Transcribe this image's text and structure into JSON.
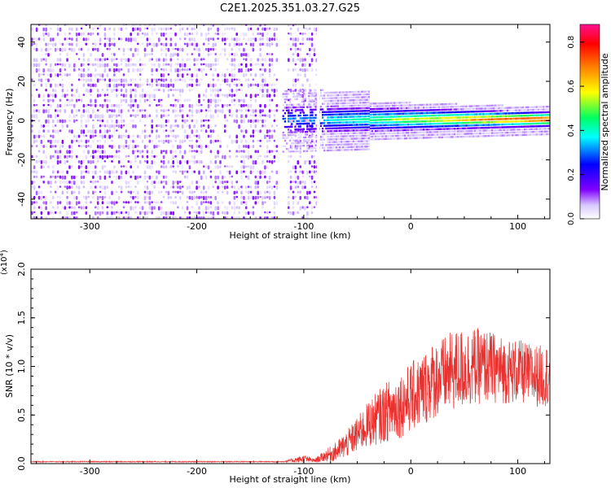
{
  "figure_title": "C2E1.2025.351.03.27.G25",
  "colors": {
    "snr_line": "#e8302e",
    "axis": "#000000",
    "background": "#ffffff"
  },
  "chart_data": [
    {
      "type": "heatmap",
      "title": "C2E1.2025.351.03.27.G25",
      "xlabel": "Height of straight line (km)",
      "ylabel": "Frequency (Hz)",
      "xlim": [
        -355,
        130
      ],
      "ylim": [
        -50,
        49
      ],
      "xticks": [
        -300,
        -200,
        -100,
        0,
        100
      ],
      "xtick_labels": [
        "-300",
        "-200",
        "-100",
        "0",
        "100"
      ],
      "yticks": [
        -40,
        -20,
        0,
        20,
        40
      ],
      "ytick_labels": [
        "-40",
        "-20",
        "0",
        "20",
        "40"
      ],
      "features": [
        {
          "name": "noise region",
          "x_range": [
            -355,
            -88
          ],
          "freq_range": [
            -50,
            49
          ],
          "typical_amplitude": 0.05
        },
        {
          "name": "gap",
          "x_range": [
            -88,
            -85
          ],
          "freq_range": [
            -50,
            49
          ],
          "typical_amplitude": 0
        },
        {
          "name": "signal track",
          "x_range": [
            -120,
            130
          ],
          "center_freq_hz": 0.5,
          "half_width_hz": [
            8,
            4
          ],
          "peak_amplitude": 0.88
        }
      ],
      "colorbar": {
        "label": "Normalized spectral amplitude",
        "range": [
          0,
          0.88
        ],
        "ticks": [
          0.0,
          0.2,
          0.4,
          0.6,
          0.8
        ],
        "tick_labels": [
          "0.0",
          "0.2",
          "0.4",
          "0.6",
          "0.8"
        ]
      }
    },
    {
      "type": "line",
      "xlabel": "Height of straight line (km)",
      "ylabel": "SNR (10 * v/v)",
      "scale_label_prefix": "(x10",
      "scale_label_exp": "4",
      "scale_label_suffix": ")",
      "xlim": [
        -355,
        130
      ],
      "ylim": [
        0,
        2.0
      ],
      "xticks": [
        -300,
        -200,
        -100,
        0,
        100
      ],
      "xtick_labels": [
        "-300",
        "-200",
        "-100",
        "0",
        "100"
      ],
      "yticks": [
        0,
        0.5,
        1.0,
        1.5,
        2.0
      ],
      "ytick_labels": [
        "0.0",
        "0.5",
        "1.0",
        "1.5",
        "2.0"
      ],
      "series": [
        {
          "name": "SNR",
          "x": [
            -355,
            -300,
            -200,
            -120,
            -105,
            -100,
            -90,
            -80,
            -70,
            -60,
            -50,
            -40,
            -30,
            -20,
            -10,
            0,
            10,
            20,
            30,
            40,
            50,
            60,
            70,
            80,
            90,
            100,
            110,
            120,
            130
          ],
          "y": [
            0.02,
            0.02,
            0.02,
            0.02,
            0.04,
            0.05,
            0.03,
            0.08,
            0.12,
            0.2,
            0.3,
            0.4,
            0.48,
            0.55,
            0.6,
            0.68,
            0.75,
            0.85,
            0.9,
            0.95,
            0.98,
            1.0,
            1.0,
            0.98,
            0.95,
            0.95,
            0.92,
            0.9,
            0.92
          ],
          "spread": [
            0.005,
            0.005,
            0.005,
            0.005,
            0.03,
            0.04,
            0.02,
            0.06,
            0.1,
            0.14,
            0.18,
            0.24,
            0.28,
            0.32,
            0.34,
            0.36,
            0.38,
            0.4,
            0.4,
            0.42,
            0.42,
            0.4,
            0.38,
            0.36,
            0.34,
            0.33,
            0.32,
            0.32,
            0.32
          ]
        }
      ]
    }
  ]
}
